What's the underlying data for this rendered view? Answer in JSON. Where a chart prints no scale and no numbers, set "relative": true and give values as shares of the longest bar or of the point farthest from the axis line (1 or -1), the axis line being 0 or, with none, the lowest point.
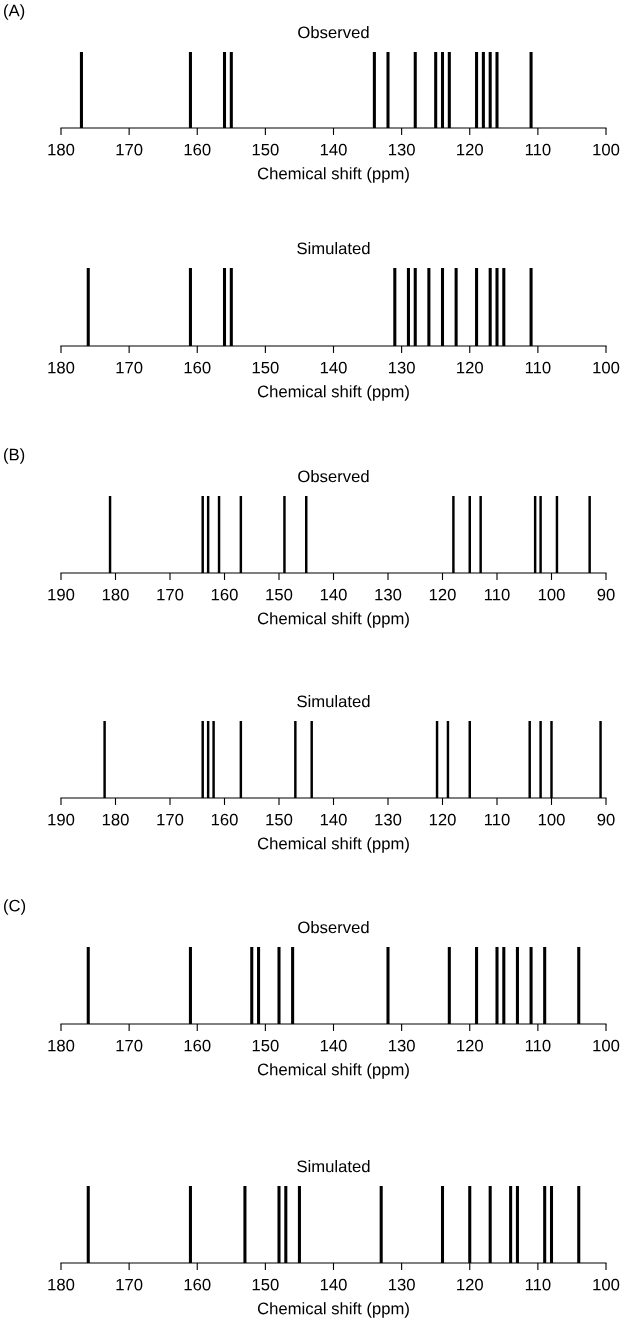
{
  "chart_data": [
    {
      "type": "bar",
      "title": "Observed",
      "annotations": [
        "(A)"
      ],
      "xlabel": "Chemical shift (ppm)",
      "relative": true,
      "color": "#000000",
      "tick_labels": "x",
      "xlim": [
        180,
        100
      ],
      "xticks": [
        180,
        170,
        160,
        150,
        140,
        130,
        120,
        110,
        100
      ],
      "x": [
        177,
        161,
        156,
        155,
        134,
        132,
        128,
        125,
        124,
        123,
        119,
        118,
        117,
        116,
        111
      ],
      "values": [
        1,
        1,
        1,
        1,
        1,
        1,
        1,
        1,
        1,
        1,
        1,
        1,
        1,
        1,
        1
      ]
    },
    {
      "type": "bar",
      "title": "Simulated",
      "xlabel": "Chemical shift (ppm)",
      "relative": true,
      "color": "#000000",
      "tick_labels": "x",
      "xlim": [
        180,
        100
      ],
      "xticks": [
        180,
        170,
        160,
        150,
        140,
        130,
        120,
        110,
        100
      ],
      "x": [
        176,
        161,
        156,
        155,
        131,
        129,
        128,
        126,
        124,
        122,
        119,
        117,
        116,
        115,
        111
      ],
      "values": [
        1,
        1,
        1,
        1,
        1,
        1,
        1,
        1,
        1,
        1,
        1,
        1,
        1,
        1,
        1
      ]
    },
    {
      "type": "bar",
      "title": "Observed",
      "annotations": [
        "(B)"
      ],
      "xlabel": "Chemical shift (ppm)",
      "relative": true,
      "color": "#000000",
      "tick_labels": "x",
      "xlim": [
        190,
        90
      ],
      "xticks": [
        190,
        180,
        170,
        160,
        150,
        140,
        130,
        120,
        110,
        100,
        90
      ],
      "x": [
        181,
        164,
        163,
        161,
        157,
        149,
        145,
        118,
        115,
        113,
        103,
        102,
        99,
        93
      ],
      "values": [
        1,
        1,
        1,
        1,
        1,
        1,
        1,
        1,
        1,
        1,
        1,
        1,
        1,
        1
      ]
    },
    {
      "type": "bar",
      "title": "Simulated",
      "xlabel": "Chemical shift (ppm)",
      "relative": true,
      "color": "#000000",
      "tick_labels": "x",
      "xlim": [
        190,
        90
      ],
      "xticks": [
        190,
        180,
        170,
        160,
        150,
        140,
        130,
        120,
        110,
        100,
        90
      ],
      "x": [
        182,
        164,
        163,
        162,
        157,
        147,
        144,
        121,
        119,
        115,
        104,
        102,
        100,
        91
      ],
      "values": [
        1,
        1,
        1,
        1,
        1,
        1,
        1,
        1,
        1,
        1,
        1,
        1,
        1,
        1
      ]
    },
    {
      "type": "bar",
      "title": "Observed",
      "annotations": [
        "(C)"
      ],
      "xlabel": "Chemical shift (ppm)",
      "relative": true,
      "color": "#000000",
      "tick_labels": "x",
      "xlim": [
        180,
        100
      ],
      "xticks": [
        180,
        170,
        160,
        150,
        140,
        130,
        120,
        110,
        100
      ],
      "x": [
        176,
        161,
        152,
        151,
        148,
        146,
        132,
        123,
        119,
        116,
        115,
        113,
        111,
        109,
        104
      ],
      "values": [
        1,
        1,
        1,
        1,
        1,
        1,
        1,
        1,
        1,
        1,
        1,
        1,
        1,
        1,
        1
      ]
    },
    {
      "type": "bar",
      "title": "Simulated",
      "xlabel": "Chemical shift (ppm)",
      "relative": true,
      "color": "#000000",
      "tick_labels": "x",
      "xlim": [
        180,
        100
      ],
      "xticks": [
        180,
        170,
        160,
        150,
        140,
        130,
        120,
        110,
        100
      ],
      "x": [
        176,
        161,
        153,
        148,
        147,
        145,
        133,
        124,
        120,
        117,
        114,
        113,
        109,
        108,
        104
      ],
      "values": [
        1,
        1,
        1,
        1,
        1,
        1,
        1,
        1,
        1,
        1,
        1,
        1,
        1,
        1,
        1
      ]
    }
  ]
}
